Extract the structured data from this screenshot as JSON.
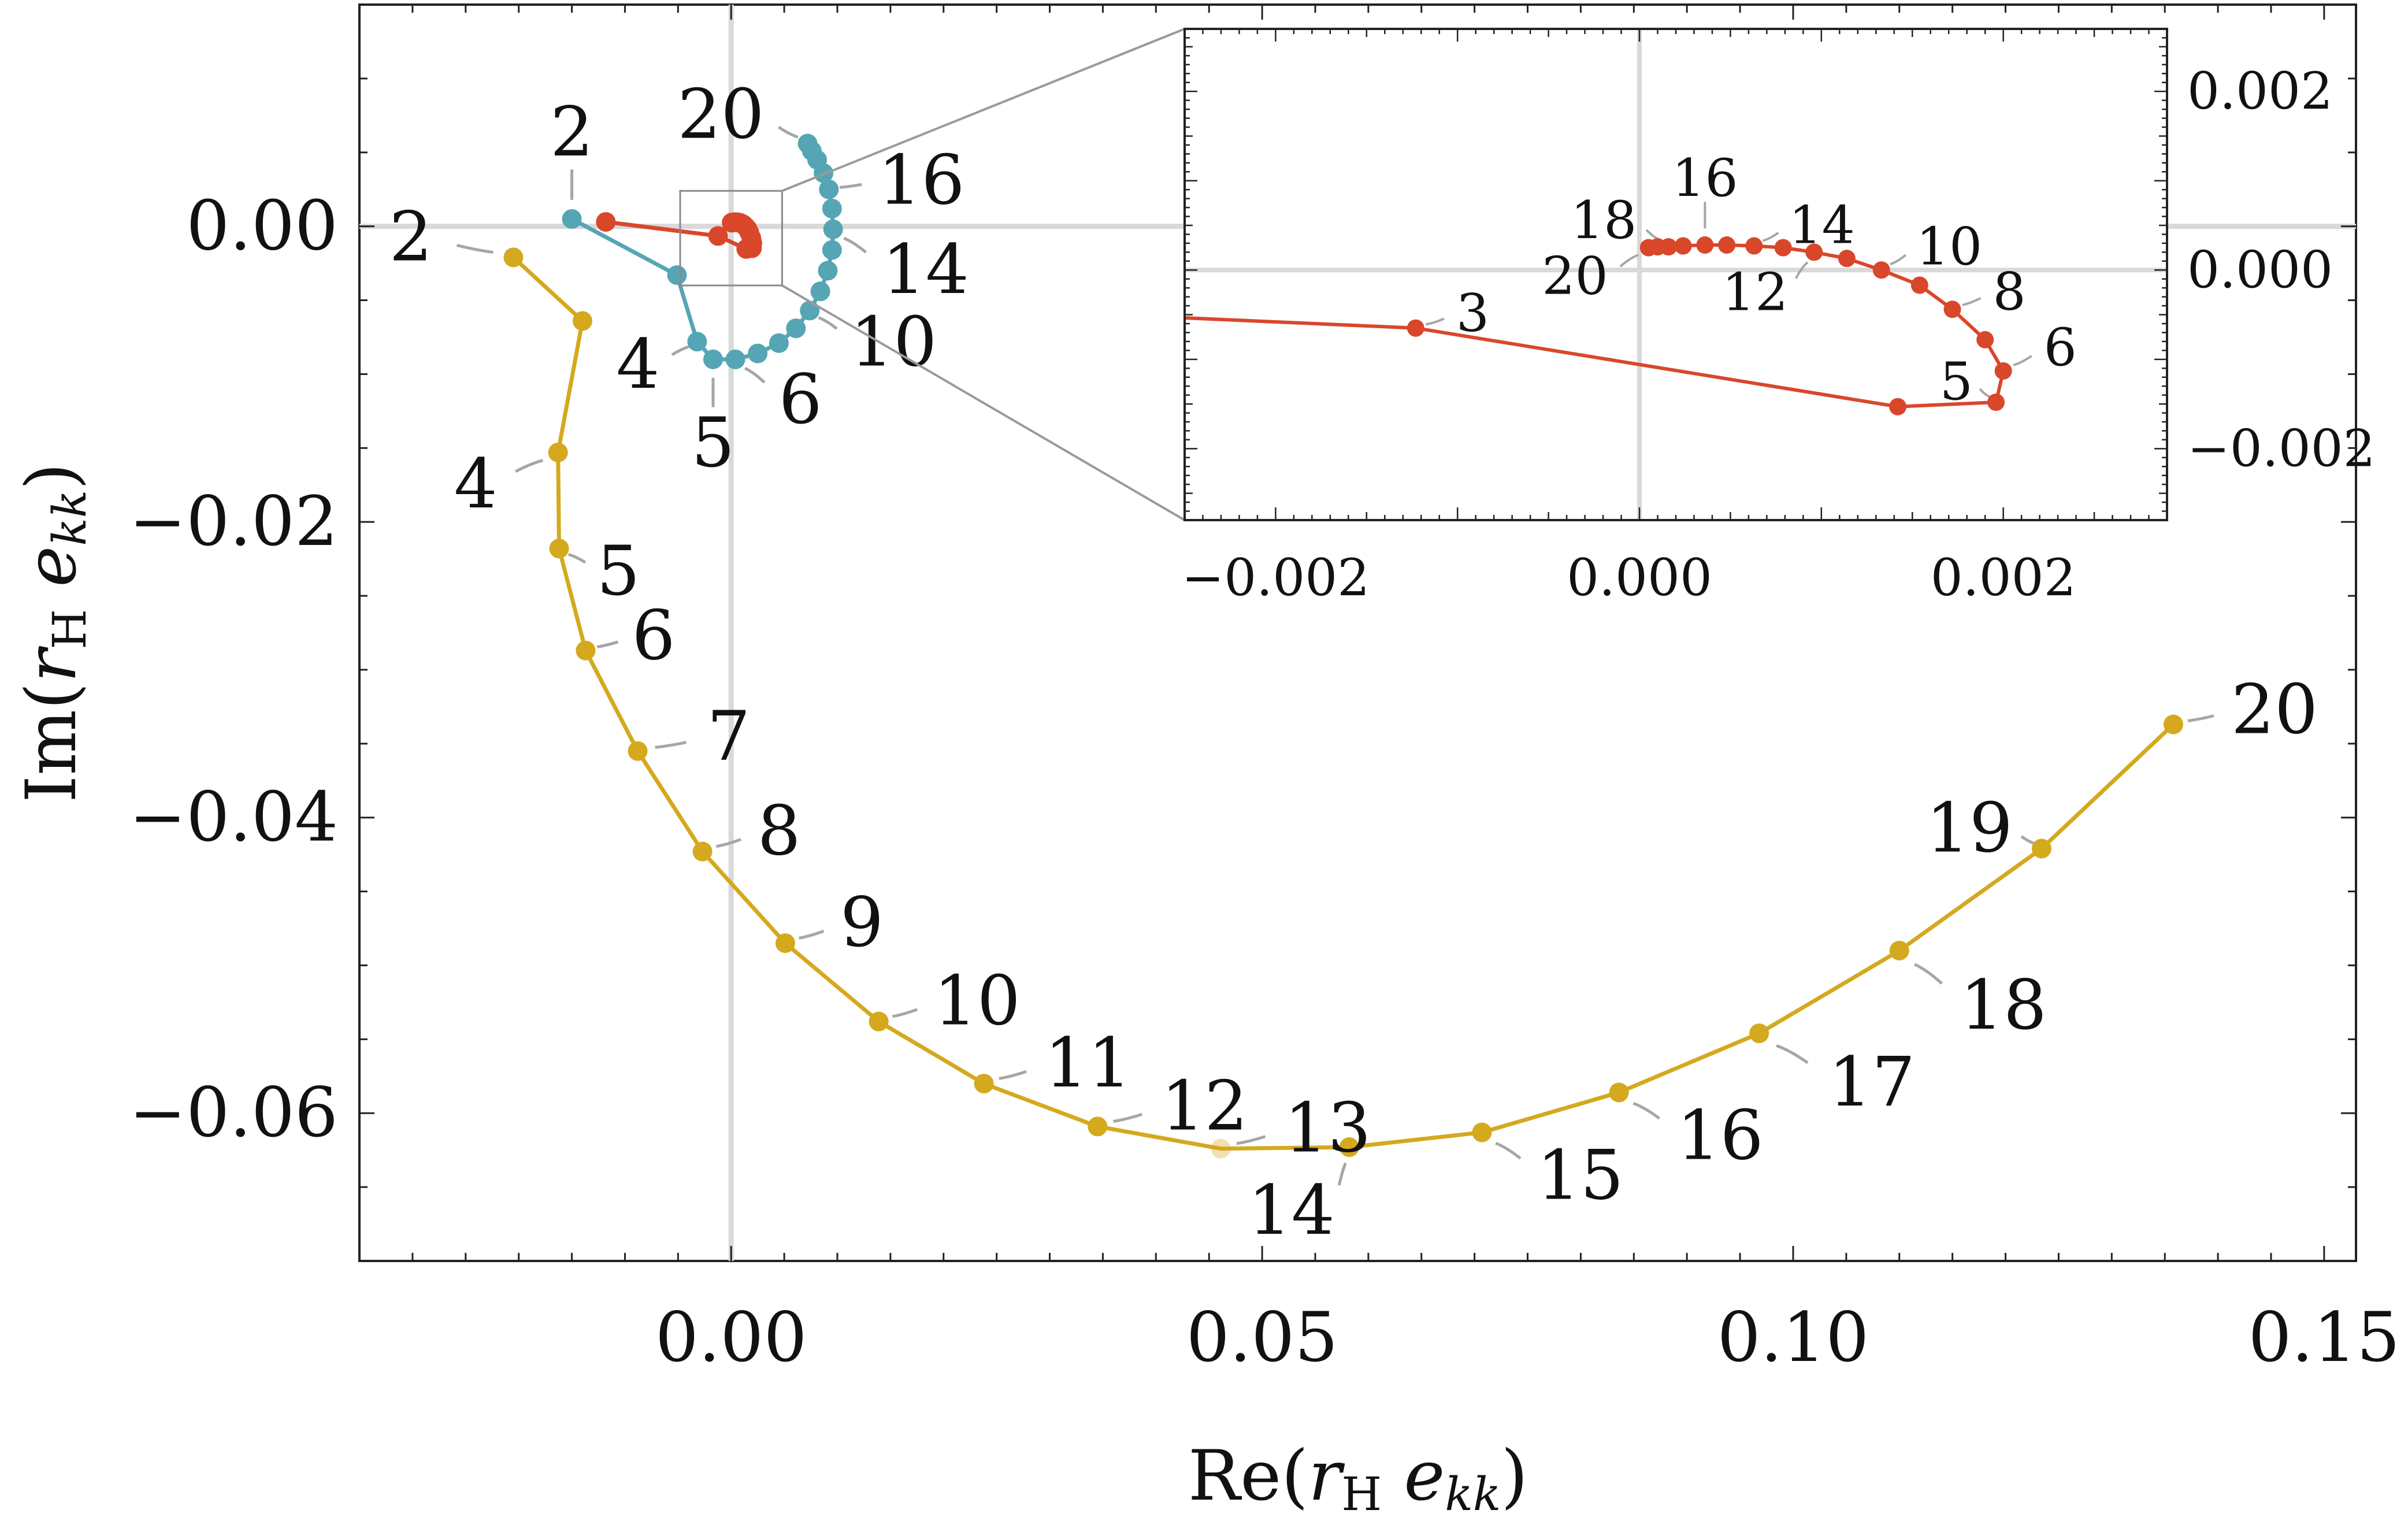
{
  "chart_data": [
    {
      "type": "line",
      "xlabel": "Re(r_H e_kk)",
      "ylabel": "Im(r_H e_kk)",
      "xlim": [
        -0.035,
        0.153
      ],
      "ylim": [
        -0.07,
        0.015
      ],
      "x_ticks": [
        "0.00",
        "0.05",
        "0.10",
        "0.15"
      ],
      "y_ticks": [
        "0.00",
        "−0.02",
        "−0.04",
        "−0.06"
      ],
      "x_tick_values": [
        0.0,
        0.05,
        0.1,
        0.15
      ],
      "y_tick_values": [
        0.0,
        -0.02,
        -0.04,
        -0.06
      ],
      "grid": "zero lines only",
      "series": [
        {
          "color": "#d4a91e",
          "points": [
            {
              "n": 2,
              "x": -0.0205,
              "y": -0.0021
            },
            {
              "n": 3,
              "x": -0.014,
              "y": -0.0064
            },
            {
              "n": 4,
              "x": -0.0163,
              "y": -0.0153
            },
            {
              "n": 5,
              "x": -0.0162,
              "y": -0.0218
            },
            {
              "n": 6,
              "x": -0.0137,
              "y": -0.0287
            },
            {
              "n": 7,
              "x": -0.0088,
              "y": -0.0355
            },
            {
              "n": 8,
              "x": -0.0027,
              "y": -0.0423
            },
            {
              "n": 9,
              "x": 0.0051,
              "y": -0.0485
            },
            {
              "n": 10,
              "x": 0.0139,
              "y": -0.0538
            },
            {
              "n": 11,
              "x": 0.0238,
              "y": -0.058
            },
            {
              "n": 12,
              "x": 0.0345,
              "y": -0.0609
            },
            {
              "n": 13,
              "x": 0.0461,
              "y": -0.0624
            },
            {
              "n": 14,
              "x": 0.0582,
              "y": -0.0623
            },
            {
              "n": 15,
              "x": 0.0707,
              "y": -0.0613
            },
            {
              "n": 16,
              "x": 0.0836,
              "y": -0.0586
            },
            {
              "n": 17,
              "x": 0.0968,
              "y": -0.0546
            },
            {
              "n": 18,
              "x": 0.11,
              "y": -0.049
            },
            {
              "n": 19,
              "x": 0.1234,
              "y": -0.0421
            },
            {
              "n": 20,
              "x": 0.1358,
              "y": -0.0337
            }
          ]
        },
        {
          "color": "#56a5b5",
          "points": [
            {
              "n": 2,
              "x": -0.015,
              "y": 0.0005
            },
            {
              "n": 3,
              "x": -0.0051,
              "y": -0.0033
            },
            {
              "n": 4,
              "x": -0.0032,
              "y": -0.0078
            },
            {
              "n": 5,
              "x": -0.0017,
              "y": -0.009
            },
            {
              "n": 6,
              "x": 0.0004,
              "y": -0.009
            },
            {
              "n": 7,
              "x": 0.0025,
              "y": -0.0086
            },
            {
              "n": 8,
              "x": 0.0045,
              "y": -0.0079
            },
            {
              "n": 9,
              "x": 0.0061,
              "y": -0.0069
            },
            {
              "n": 10,
              "x": 0.0074,
              "y": -0.0057
            },
            {
              "n": 11,
              "x": 0.0084,
              "y": -0.0044
            },
            {
              "n": 12,
              "x": 0.0091,
              "y": -0.003
            },
            {
              "n": 13,
              "x": 0.0095,
              "y": -0.0016
            },
            {
              "n": 14,
              "x": 0.0096,
              "y": -0.0002
            },
            {
              "n": 15,
              "x": 0.0095,
              "y": 0.0012
            },
            {
              "n": 16,
              "x": 0.0092,
              "y": 0.0025
            },
            {
              "n": 17,
              "x": 0.0087,
              "y": 0.0036
            },
            {
              "n": 18,
              "x": 0.0081,
              "y": 0.0045
            },
            {
              "n": 19,
              "x": 0.0076,
              "y": 0.0051
            },
            {
              "n": 20,
              "x": 0.0072,
              "y": 0.0056
            }
          ]
        },
        {
          "color": "#d9472b",
          "points": [
            {
              "n": 2,
              "x": -0.0118,
              "y": 0.0003
            },
            {
              "n": 3,
              "x": -0.00123,
              "y": -0.00065
            },
            {
              "n": 4,
              "x": 0.00142,
              "y": -0.00153
            },
            {
              "n": 5,
              "x": 0.00196,
              "y": -0.00148
            },
            {
              "n": 6,
              "x": 0.002,
              "y": -0.00113
            },
            {
              "n": 7,
              "x": 0.0019,
              "y": -0.00078
            },
            {
              "n": 8,
              "x": 0.00172,
              "y": -0.00044
            },
            {
              "n": 9,
              "x": 0.00154,
              "y": -0.00017
            },
            {
              "n": 10,
              "x": 0.00133,
              "y": 0.0
            },
            {
              "n": 11,
              "x": 0.00114,
              "y": 0.00013
            },
            {
              "n": 12,
              "x": 0.00096,
              "y": 0.0002
            },
            {
              "n": 13,
              "x": 0.00079,
              "y": 0.00025
            },
            {
              "n": 14,
              "x": 0.00063,
              "y": 0.00027
            },
            {
              "n": 15,
              "x": 0.00048,
              "y": 0.00028
            },
            {
              "n": 16,
              "x": 0.00036,
              "y": 0.00028
            },
            {
              "n": 17,
              "x": 0.00024,
              "y": 0.00027
            },
            {
              "n": 18,
              "x": 0.00016,
              "y": 0.00026
            },
            {
              "n": 19,
              "x": 0.0001,
              "y": 0.00026
            },
            {
              "n": 20,
              "x": 5e-05,
              "y": 0.00025
            }
          ]
        }
      ],
      "point_labels": {
        "yellow": [
          "2",
          "4",
          "5",
          "6",
          "7",
          "8",
          "9",
          "10",
          "11",
          "12",
          "13",
          "14",
          "15",
          "16",
          "17",
          "18",
          "19",
          "20"
        ],
        "teal": [
          "2",
          "4",
          "5",
          "6",
          "10",
          "14",
          "16",
          "20"
        ]
      }
    },
    {
      "type": "line",
      "role": "inset (zoom of region near origin)",
      "xlim": [
        -0.0025,
        0.0029
      ],
      "ylim": [
        -0.0028,
        0.0027
      ],
      "x_ticks": [
        "−0.002",
        "0.000",
        "0.002"
      ],
      "y_ticks": [
        "0.002",
        "0.000",
        "−0.002"
      ],
      "x_tick_values": [
        -0.002,
        0.0,
        0.002
      ],
      "y_tick_values": [
        0.002,
        0.0,
        -0.002
      ],
      "y_axis_position": "right",
      "series_ref": "red series (index 2)",
      "point_labels": [
        "3",
        "5",
        "6",
        "8",
        "10",
        "12",
        "14",
        "16",
        "18",
        "20"
      ]
    }
  ],
  "colors": {
    "yellow": "#d4a91e",
    "teal": "#56a5b5",
    "red": "#d9472b",
    "zero_line": "#d9d9d9",
    "leader": "#a6a6a6"
  }
}
